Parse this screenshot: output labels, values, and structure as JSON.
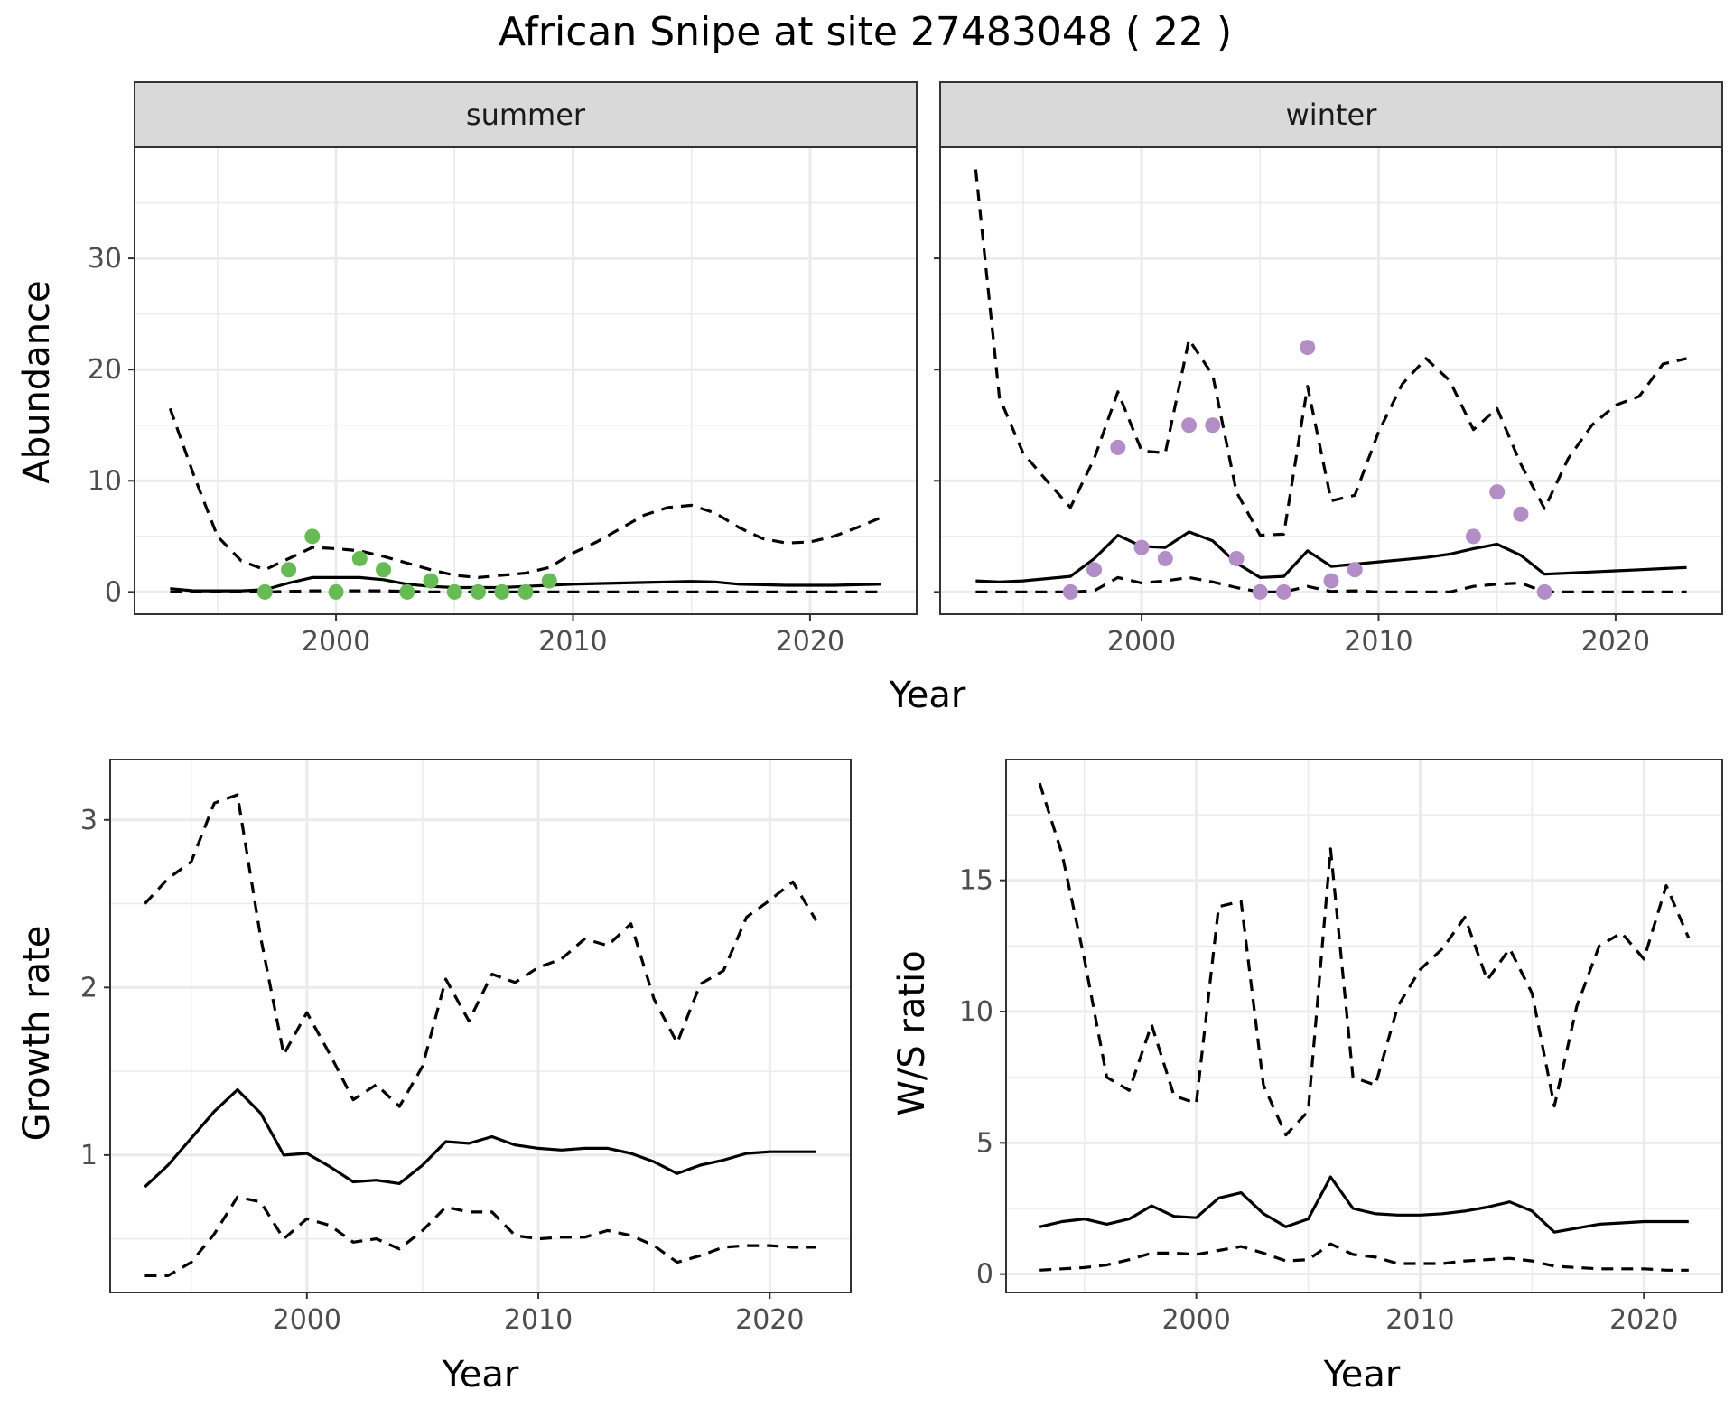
{
  "title": "African Snipe at site 27483048 ( 22 )",
  "colors": {
    "summer_points": "#66bb55",
    "winter_points": "#b38dc6",
    "line": "#000000",
    "grid": "#ebebeb",
    "strip_bg": "#d9d9d9",
    "strip_border": "#333333"
  },
  "chart_data": [
    {
      "type": "line",
      "panel": "summer",
      "strip": "summer",
      "xlabel": "Year",
      "ylabel": "Abundance",
      "xlim": [
        1991.5,
        2024.5
      ],
      "ylim": [
        -2,
        40
      ],
      "xticks": [
        2000,
        2010,
        2020
      ],
      "yticks": [
        0,
        10,
        20,
        30
      ],
      "x": [
        1993,
        1994,
        1995,
        1996,
        1997,
        1998,
        1999,
        2000,
        2001,
        2002,
        2003,
        2004,
        2005,
        2006,
        2007,
        2008,
        2009,
        2010,
        2011,
        2012,
        2013,
        2014,
        2015,
        2016,
        2017,
        2018,
        2019,
        2020,
        2021,
        2022,
        2023
      ],
      "series": [
        {
          "role": "estimate",
          "style": "solid",
          "values": [
            0.3,
            0.1,
            0.1,
            0.1,
            0.2,
            0.8,
            1.3,
            1.3,
            1.3,
            1.1,
            0.7,
            0.5,
            0.4,
            0.4,
            0.4,
            0.5,
            0.6,
            0.7,
            0.75,
            0.8,
            0.85,
            0.9,
            0.95,
            0.9,
            0.7,
            0.65,
            0.6,
            0.6,
            0.6,
            0.65,
            0.7
          ]
        },
        {
          "role": "upper",
          "style": "dashed",
          "values": [
            16.5,
            10.5,
            5,
            2.8,
            2,
            3,
            4,
            3.9,
            3.7,
            3.2,
            2.6,
            2,
            1.5,
            1.3,
            1.5,
            1.7,
            2.2,
            3.5,
            4.5,
            5.7,
            6.9,
            7.6,
            7.8,
            7.1,
            5.8,
            4.8,
            4.4,
            4.5,
            5,
            5.8,
            6.7
          ]
        },
        {
          "role": "lower",
          "style": "dashed",
          "values": [
            0,
            0,
            0,
            0,
            0,
            0.05,
            0.1,
            0.1,
            0.1,
            0.1,
            0.05,
            0,
            0,
            0,
            0,
            0,
            0,
            0,
            0,
            0,
            0,
            0,
            0,
            0,
            0,
            0,
            0,
            0,
            0,
            0,
            0
          ]
        }
      ],
      "points": {
        "name": "observed",
        "x": [
          1997,
          1998,
          1999,
          2000,
          2001,
          2002,
          2003,
          2004,
          2005,
          2006,
          2007,
          2008,
          2009
        ],
        "y": [
          0,
          2,
          5,
          0,
          3,
          2,
          0,
          1,
          0,
          0,
          0,
          0,
          1
        ]
      }
    },
    {
      "type": "line",
      "panel": "winter",
      "strip": "winter",
      "xlabel": "Year",
      "ylabel": "",
      "xlim": [
        1991.5,
        2024.5
      ],
      "ylim": [
        -2,
        40
      ],
      "xticks": [
        2000,
        2010,
        2020
      ],
      "yticks": [
        0,
        10,
        20,
        30
      ],
      "x": [
        1993,
        1994,
        1995,
        1996,
        1997,
        1998,
        1999,
        2000,
        2001,
        2002,
        2003,
        2004,
        2005,
        2006,
        2007,
        2008,
        2009,
        2010,
        2011,
        2012,
        2013,
        2014,
        2015,
        2016,
        2017,
        2018,
        2019,
        2020,
        2021,
        2022,
        2023
      ],
      "series": [
        {
          "role": "estimate",
          "style": "solid",
          "values": [
            1,
            0.9,
            1,
            1.2,
            1.4,
            3,
            5.1,
            4.1,
            4,
            5.4,
            4.6,
            2.6,
            1.3,
            1.4,
            3.7,
            2.3,
            2.5,
            2.7,
            2.9,
            3.1,
            3.4,
            3.9,
            4.3,
            3.3,
            1.6,
            1.7,
            1.8,
            1.9,
            2,
            2.1,
            2.2
          ]
        },
        {
          "role": "upper",
          "style": "dashed",
          "values": [
            38,
            17.5,
            12.5,
            10,
            7.6,
            12,
            18,
            12.7,
            12.5,
            22.7,
            19.5,
            9,
            5.1,
            5.2,
            18.5,
            8.2,
            8.7,
            14.4,
            18.7,
            21,
            19,
            14.6,
            16.5,
            11.5,
            7.5,
            12,
            15,
            16.8,
            17.6,
            20.5,
            21
          ]
        },
        {
          "role": "lower",
          "style": "dashed",
          "values": [
            0,
            0,
            0,
            0,
            0,
            0.1,
            1.3,
            0.8,
            1,
            1.3,
            0.9,
            0.4,
            0,
            0,
            0.5,
            0.05,
            0.1,
            0,
            0,
            0,
            0,
            0.5,
            0.7,
            0.8,
            0,
            0,
            0,
            0,
            0,
            0,
            0
          ]
        }
      ],
      "points": {
        "name": "observed",
        "x": [
          1997,
          1998,
          1999,
          2000,
          2001,
          2002,
          2003,
          2004,
          2005,
          2006,
          2007,
          2008,
          2009,
          2014,
          2015,
          2016,
          2017
        ],
        "y": [
          0,
          2,
          13,
          4,
          3,
          15,
          15,
          3,
          0,
          0,
          22,
          1,
          2,
          5,
          9,
          7,
          0
        ]
      }
    },
    {
      "type": "line",
      "panel": "growth",
      "xlabel": "Year",
      "ylabel": "Growth rate",
      "xlim": [
        1991.5,
        2023.5
      ],
      "ylim": [
        0.18,
        3.36
      ],
      "xticks": [
        2000,
        2010,
        2020
      ],
      "yticks": [
        1,
        2,
        3
      ],
      "x": [
        1993,
        1994,
        1995,
        1996,
        1997,
        1998,
        1999,
        2000,
        2001,
        2002,
        2003,
        2004,
        2005,
        2006,
        2007,
        2008,
        2009,
        2010,
        2011,
        2012,
        2013,
        2014,
        2015,
        2016,
        2017,
        2018,
        2019,
        2020,
        2021,
        2022
      ],
      "series": [
        {
          "role": "estimate",
          "style": "solid",
          "values": [
            0.81,
            0.94,
            1.1,
            1.26,
            1.39,
            1.25,
            1,
            1.01,
            0.93,
            0.84,
            0.85,
            0.83,
            0.94,
            1.08,
            1.07,
            1.11,
            1.06,
            1.04,
            1.03,
            1.04,
            1.04,
            1.01,
            0.96,
            0.89,
            0.94,
            0.97,
            1.01,
            1.02,
            1.02,
            1.02
          ]
        },
        {
          "role": "upper",
          "style": "dashed",
          "values": [
            2.5,
            2.65,
            2.75,
            3.1,
            3.15,
            2.3,
            1.6,
            1.85,
            1.6,
            1.33,
            1.42,
            1.29,
            1.53,
            2.05,
            1.8,
            2.08,
            2.03,
            2.12,
            2.17,
            2.29,
            2.25,
            2.38,
            1.93,
            1.67,
            2.02,
            2.1,
            2.42,
            2.52,
            2.63,
            2.4
          ]
        },
        {
          "role": "lower",
          "style": "dashed",
          "values": [
            0.28,
            0.28,
            0.36,
            0.53,
            0.75,
            0.72,
            0.5,
            0.62,
            0.58,
            0.48,
            0.5,
            0.44,
            0.55,
            0.69,
            0.66,
            0.66,
            0.52,
            0.5,
            0.51,
            0.51,
            0.55,
            0.52,
            0.46,
            0.36,
            0.4,
            0.45,
            0.46,
            0.46,
            0.45,
            0.45
          ]
        }
      ]
    },
    {
      "type": "line",
      "panel": "ratio",
      "xlabel": "Year",
      "ylabel": "W/S ratio",
      "xlim": [
        1991.5,
        2023.5
      ],
      "ylim": [
        -0.7,
        19.6
      ],
      "xticks": [
        2000,
        2010,
        2020
      ],
      "yticks": [
        0,
        5,
        10,
        15
      ],
      "x": [
        1993,
        1994,
        1995,
        1996,
        1997,
        1998,
        1999,
        2000,
        2001,
        2002,
        2003,
        2004,
        2005,
        2006,
        2007,
        2008,
        2009,
        2010,
        2011,
        2012,
        2013,
        2014,
        2015,
        2016,
        2017,
        2018,
        2019,
        2020,
        2021,
        2022
      ],
      "series": [
        {
          "role": "estimate",
          "style": "solid",
          "values": [
            1.8,
            2,
            2.1,
            1.9,
            2.1,
            2.6,
            2.2,
            2.15,
            2.9,
            3.1,
            2.3,
            1.8,
            2.1,
            3.7,
            2.5,
            2.3,
            2.25,
            2.25,
            2.3,
            2.4,
            2.55,
            2.75,
            2.4,
            1.6,
            1.75,
            1.9,
            1.95,
            2,
            2,
            2
          ]
        },
        {
          "role": "upper",
          "style": "dashed",
          "values": [
            18.7,
            16,
            12,
            7.5,
            7,
            9.5,
            6.8,
            6.5,
            14,
            14.2,
            7.2,
            5.3,
            6.2,
            16.2,
            7.5,
            7.2,
            10.2,
            11.6,
            12.4,
            13.6,
            11.2,
            12.4,
            10.7,
            6.4,
            10.2,
            12.5,
            13,
            12,
            14.8,
            12.8
          ]
        },
        {
          "role": "lower",
          "style": "dashed",
          "values": [
            0.15,
            0.2,
            0.25,
            0.35,
            0.55,
            0.8,
            0.8,
            0.75,
            0.9,
            1.05,
            0.8,
            0.5,
            0.55,
            1.15,
            0.75,
            0.65,
            0.4,
            0.4,
            0.4,
            0.5,
            0.55,
            0.6,
            0.5,
            0.3,
            0.25,
            0.2,
            0.2,
            0.2,
            0.15,
            0.15
          ]
        }
      ]
    }
  ]
}
